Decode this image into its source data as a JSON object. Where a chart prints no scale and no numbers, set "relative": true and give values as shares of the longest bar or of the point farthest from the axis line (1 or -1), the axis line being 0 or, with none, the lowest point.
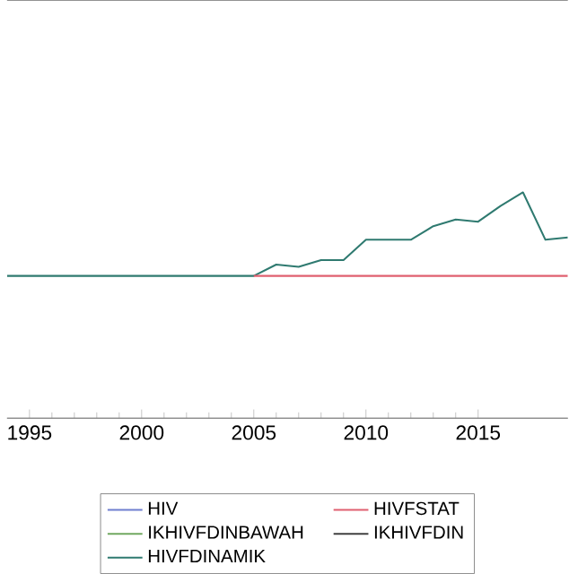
{
  "chart_data": {
    "type": "line",
    "relative": true,
    "x": [
      1994,
      1995,
      1996,
      1997,
      1998,
      1999,
      2000,
      2001,
      2002,
      2003,
      2004,
      2005,
      2006,
      2007,
      2008,
      2009,
      2010,
      2011,
      2012,
      2013,
      2014,
      2015,
      2016,
      2017,
      2018,
      2019
    ],
    "xlim": [
      1994,
      2019
    ],
    "xticks": [
      1995,
      2000,
      2005,
      2010,
      2015
    ],
    "legend": "bottom",
    "line_style": "solid",
    "marker": "none",
    "grid": false,
    "series": [
      {
        "name": "HIV",
        "color": "#6f7fd0",
        "values": [
          null,
          null,
          null,
          null,
          null,
          null,
          null,
          null,
          null,
          null,
          null,
          null,
          null,
          null,
          null,
          null,
          null,
          null,
          null,
          null,
          null,
          null,
          null,
          null,
          null,
          null
        ]
      },
      {
        "name": "HIVFSTAT",
        "color": "#e06070",
        "values": [
          null,
          null,
          null,
          null,
          null,
          null,
          null,
          null,
          null,
          null,
          null,
          0.63,
          0.63,
          0.63,
          0.63,
          0.63,
          0.63,
          0.63,
          0.63,
          0.63,
          0.63,
          0.63,
          0.63,
          0.63,
          0.63,
          0.63
        ]
      },
      {
        "name": "IKHIVFDINBAWAH",
        "color": "#70a860",
        "values": [
          null,
          null,
          null,
          null,
          null,
          null,
          null,
          null,
          null,
          null,
          null,
          null,
          null,
          null,
          null,
          null,
          null,
          null,
          null,
          null,
          null,
          null,
          null,
          null,
          null,
          null
        ]
      },
      {
        "name": "IKHIVFDIN",
        "color": "#404040",
        "values": [
          null,
          null,
          null,
          null,
          null,
          null,
          null,
          null,
          null,
          null,
          null,
          null,
          null,
          null,
          null,
          null,
          null,
          null,
          null,
          null,
          null,
          null,
          null,
          null,
          null,
          null
        ]
      },
      {
        "name": "HIVFDINAMIK",
        "color": "#2f7a70",
        "values": [
          0.63,
          0.63,
          0.63,
          0.63,
          0.63,
          0.63,
          0.63,
          0.63,
          0.63,
          0.63,
          0.63,
          0.63,
          0.68,
          0.67,
          0.7,
          0.7,
          0.79,
          0.79,
          0.79,
          0.85,
          0.88,
          0.87,
          0.94,
          1,
          0.79,
          0.8
        ]
      }
    ]
  }
}
